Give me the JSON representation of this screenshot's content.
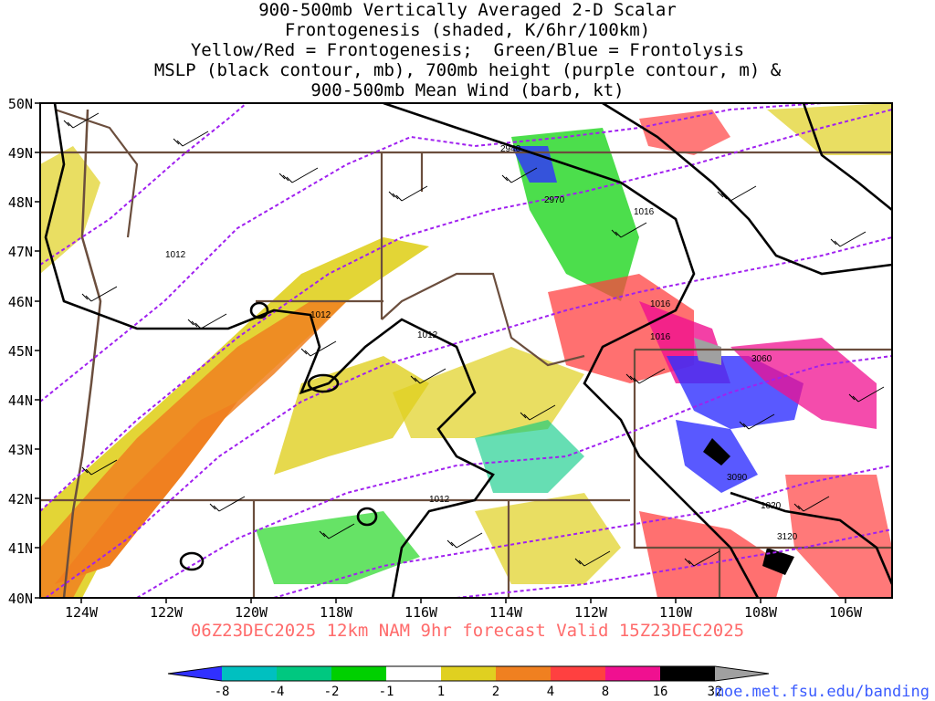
{
  "title_lines": [
    "900-500mb Vertically Averaged 2-D Scalar",
    "Frontogenesis (shaded, K/6hr/100km)",
    "Yellow/Red = Frontogenesis;  Green/Blue = Frontolysis",
    "MSLP (black contour, mb), 700mb height (purple contour, m) &",
    "900-500mb Mean Wind (barb, kt)"
  ],
  "lat_labels": [
    "50N",
    "49N",
    "48N",
    "47N",
    "46N",
    "45N",
    "44N",
    "43N",
    "42N",
    "41N",
    "40N"
  ],
  "lon_labels": [
    "124W",
    "122W",
    "120W",
    "118W",
    "116W",
    "114W",
    "112W",
    "110W",
    "108W",
    "106W"
  ],
  "footer": "06Z23DEC2025 12km NAM 9hr forecast Valid 15Z23DEC2025",
  "credit": "moe.met.fsu.edu/banding",
  "colorbar": {
    "labels": [
      "-8",
      "-4",
      "-2",
      "-1",
      "1",
      "2",
      "4",
      "8",
      "16",
      "32"
    ],
    "colors": [
      "#3030ff",
      "#00c0c0",
      "#00c880",
      "#00d000",
      "#ffffff",
      "#e0d020",
      "#f08020",
      "#ff4040",
      "#f01090",
      "#000000",
      "#a0a0a0"
    ]
  },
  "contour_labels": {
    "mslp": [
      "1012",
      "1012",
      "1012",
      "1016",
      "1016",
      "1016",
      "1012",
      "1020"
    ],
    "height": [
      "2940",
      "2970",
      "3060",
      "3090",
      "3120"
    ]
  },
  "colors": {
    "mslp": "#000000",
    "height": "#a020f0",
    "borders": "#6b4e3d",
    "footer": "#ff6b6b",
    "credit": "#3a5bff"
  }
}
